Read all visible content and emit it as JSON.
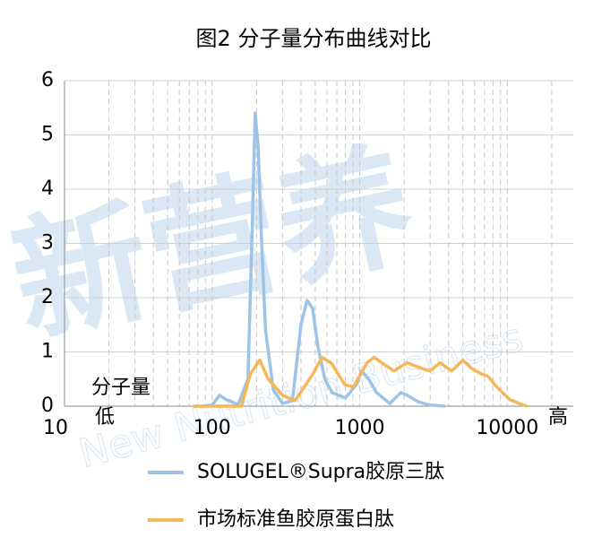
{
  "chart_data": {
    "type": "line",
    "title": "图2 分子量分布曲线对比",
    "annotations": {
      "axis_note": "分子量",
      "low": "低",
      "high": "高"
    },
    "watermark": {
      "cn": "新营养",
      "en": "New Nutrition Business"
    },
    "x_scale": "log",
    "xlim": [
      10,
      28000
    ],
    "xticks": [
      10,
      100,
      1000,
      10000
    ],
    "xminorticks": [
      20,
      30,
      40,
      50,
      60,
      70,
      80,
      90,
      200,
      300,
      400,
      500,
      600,
      700,
      800,
      900,
      2000,
      3000,
      4000,
      5000,
      6000,
      7000,
      8000,
      9000,
      20000
    ],
    "ylim": [
      0,
      6
    ],
    "yticks": [
      0,
      1,
      2,
      3,
      4,
      5,
      6
    ],
    "grid": true,
    "legend_position": "bottom",
    "series": [
      {
        "name": "SOLUGEL®Supra胶原三肽",
        "color": "#9dc3e6",
        "x": [
          85,
          100,
          112,
          125,
          150,
          175,
          188,
          196,
          205,
          215,
          230,
          260,
          300,
          350,
          400,
          440,
          480,
          520,
          580,
          650,
          800,
          950,
          1030,
          1150,
          1300,
          1600,
          1900,
          2100,
          2500,
          3000,
          3800
        ],
        "values": [
          0,
          0.02,
          0.2,
          0.12,
          0.03,
          0.5,
          3.5,
          5.4,
          4.8,
          3.2,
          1.4,
          0.3,
          0.05,
          0.1,
          1.5,
          1.95,
          1.8,
          1.1,
          0.5,
          0.25,
          0.15,
          0.4,
          0.65,
          0.5,
          0.25,
          0.05,
          0.25,
          0.2,
          0.08,
          0.02,
          0
        ]
      },
      {
        "name": "市场标准鱼胶原蛋白肽",
        "color": "#f4b75a",
        "x": [
          74,
          158,
          182,
          210,
          240,
          300,
          365,
          483,
          555,
          640,
          790,
          905,
          1120,
          1250,
          1500,
          1700,
          2100,
          2600,
          3000,
          3500,
          4200,
          5000,
          5700,
          6600,
          7400,
          8500,
          10400,
          12800,
          13700
        ],
        "values": [
          0,
          0,
          0.6,
          0.85,
          0.5,
          0.2,
          0.1,
          0.6,
          0.9,
          0.8,
          0.4,
          0.35,
          0.8,
          0.9,
          0.75,
          0.65,
          0.8,
          0.7,
          0.65,
          0.8,
          0.65,
          0.85,
          0.7,
          0.6,
          0.55,
          0.35,
          0.12,
          0.02,
          0
        ]
      }
    ]
  }
}
